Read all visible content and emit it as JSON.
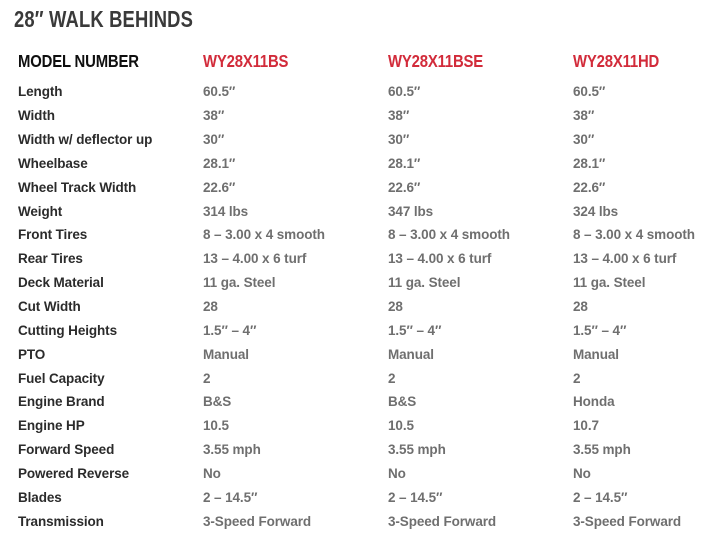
{
  "title": "28″ WALK BEHINDS",
  "colors": {
    "accent_red": "#d22b3a",
    "title_text": "#3a3a3a",
    "label_text": "#2b2b2b",
    "value_text": "#6f6f6f",
    "background": "#ffffff"
  },
  "table": {
    "header_label": "MODEL NUMBER",
    "models": [
      "WY28X11BS",
      "WY28X11BSE",
      "WY28X11HD"
    ],
    "rows": [
      {
        "label": "Length",
        "values": [
          "60.5″",
          "60.5″",
          "60.5″"
        ]
      },
      {
        "label": "Width",
        "values": [
          "38″",
          "38″",
          "38″"
        ]
      },
      {
        "label": "Width w/ deflector up",
        "values": [
          "30″",
          "30″",
          "30″"
        ]
      },
      {
        "label": "Wheelbase",
        "values": [
          "28.1″",
          "28.1″",
          "28.1″"
        ]
      },
      {
        "label": "Wheel Track Width",
        "values": [
          "22.6″",
          "22.6″",
          "22.6″"
        ]
      },
      {
        "label": "Weight",
        "values": [
          "314 lbs",
          "347 lbs",
          "324 lbs"
        ]
      },
      {
        "label": "Front Tires",
        "values": [
          "8 – 3.00 x 4 smooth",
          "8 – 3.00 x 4 smooth",
          "8 – 3.00 x 4 smooth"
        ]
      },
      {
        "label": "Rear Tires",
        "values": [
          "13 – 4.00 x 6 turf",
          "13 – 4.00 x 6 turf",
          "13 – 4.00 x 6 turf"
        ]
      },
      {
        "label": "Deck Material",
        "values": [
          "11 ga. Steel",
          "11 ga. Steel",
          "11 ga. Steel"
        ]
      },
      {
        "label": "Cut Width",
        "values": [
          "28",
          "28",
          "28"
        ]
      },
      {
        "label": "Cutting Heights",
        "values": [
          "1.5″ – 4″",
          "1.5″ – 4″",
          "1.5″ – 4″"
        ]
      },
      {
        "label": "PTO",
        "values": [
          "Manual",
          "Manual",
          "Manual"
        ]
      },
      {
        "label": "Fuel Capacity",
        "values": [
          "2",
          "2",
          "2"
        ]
      },
      {
        "label": "Engine Brand",
        "values": [
          "B&S",
          "B&S",
          "Honda"
        ]
      },
      {
        "label": "Engine HP",
        "values": [
          "10.5",
          "10.5",
          "10.7"
        ]
      },
      {
        "label": "Forward Speed",
        "values": [
          "3.55 mph",
          "3.55 mph",
          "3.55 mph"
        ]
      },
      {
        "label": "Powered Reverse",
        "values": [
          "No",
          "No",
          "No"
        ]
      },
      {
        "label": "Blades",
        "values": [
          "2 – 14.5″",
          "2 – 14.5″",
          "2 – 14.5″"
        ]
      },
      {
        "label": "Transmission",
        "values": [
          "3-Speed Forward",
          "3-Speed Forward",
          "3-Speed Forward"
        ]
      }
    ]
  }
}
